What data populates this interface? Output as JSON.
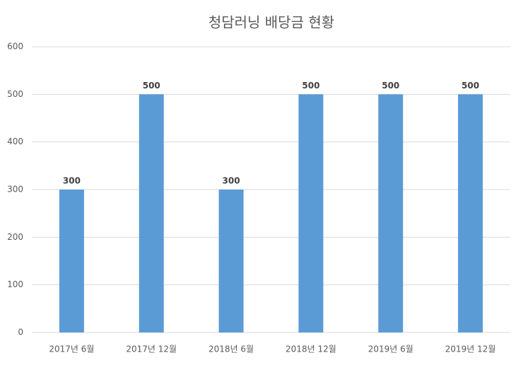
{
  "chart_data": {
    "type": "bar",
    "title": "청담러닝 배당금 현황",
    "categories": [
      "2017년 6월",
      "2017년 12월",
      "2018년 6월",
      "2018년 12월",
      "2019년 6월",
      "2019년 12월"
    ],
    "values": [
      300,
      500,
      300,
      500,
      500,
      500
    ],
    "color": "#5b9bd5",
    "ylim": [
      0,
      600
    ],
    "yticks": [
      0,
      100,
      200,
      300,
      400,
      500,
      600
    ],
    "grid": true,
    "data_labels": true
  }
}
